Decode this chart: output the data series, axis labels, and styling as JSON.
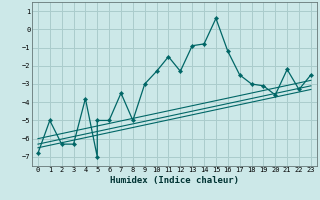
{
  "xlabel": "Humidex (Indice chaleur)",
  "bg_color": "#cce8e8",
  "grid_color": "#aacccc",
  "line_color": "#006666",
  "marker_color": "#006666",
  "xlim": [
    -0.5,
    23.5
  ],
  "ylim": [
    -7.5,
    1.5
  ],
  "yticks": [
    1,
    0,
    -1,
    -2,
    -3,
    -4,
    -5,
    -6,
    -7
  ],
  "xticks": [
    0,
    1,
    2,
    3,
    4,
    5,
    6,
    7,
    8,
    9,
    10,
    11,
    12,
    13,
    14,
    15,
    16,
    17,
    18,
    19,
    20,
    21,
    22,
    23
  ],
  "main_x": [
    0,
    1,
    2,
    3,
    4,
    5,
    5,
    6,
    7,
    8,
    9,
    10,
    11,
    12,
    13,
    14,
    15,
    16,
    17,
    18,
    19,
    20,
    21,
    22,
    23
  ],
  "main_y": [
    -6.8,
    -5.0,
    -6.3,
    -6.3,
    -3.8,
    -7.0,
    -5.0,
    -5.0,
    -3.5,
    -5.0,
    -3.0,
    -2.3,
    -1.5,
    -2.3,
    -0.9,
    -0.8,
    0.6,
    -1.2,
    -2.5,
    -3.0,
    -3.1,
    -3.6,
    -2.2,
    -3.3,
    -2.5
  ],
  "line1_x": [
    0,
    23
  ],
  "line1_y": [
    -6.3,
    -3.1
  ],
  "line2_x": [
    0,
    23
  ],
  "line2_y": [
    -6.5,
    -3.3
  ],
  "line3_x": [
    0,
    23
  ],
  "line3_y": [
    -6.0,
    -2.8
  ]
}
